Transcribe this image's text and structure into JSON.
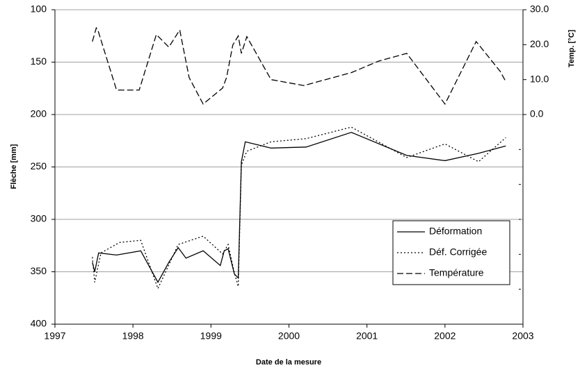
{
  "chart_data": {
    "type": "line",
    "x_label": "Date de la mesure",
    "y_label": "Flèche [mm]",
    "y2_label": "Temp. [°C]",
    "xlim": [
      1997,
      2003
    ],
    "xticks": [
      1997,
      1998,
      1999,
      2000,
      2001,
      2002,
      2003
    ],
    "ylim": [
      100,
      400
    ],
    "y_inverted": true,
    "yticks": [
      100,
      150,
      200,
      250,
      300,
      350,
      400
    ],
    "y2lim": [
      -60,
      30
    ],
    "y2ticks": [
      {
        "value": 30,
        "label": "30.0"
      },
      {
        "value": 20,
        "label": "20.0"
      },
      {
        "value": 10,
        "label": "10.0"
      },
      {
        "value": 0,
        "label": "0.0"
      }
    ],
    "y2minor_ticks": [
      -10,
      -20,
      -30,
      -40,
      -50
    ],
    "grid": true,
    "legend_position": "lower right",
    "series": [
      {
        "name": "Déformation",
        "color": "#000000",
        "dash": "solid",
        "x": [
          1997.48,
          1997.51,
          1997.56,
          1997.79,
          1998.1,
          1998.32,
          1998.46,
          1998.58,
          1998.68,
          1998.9,
          1999.12,
          1999.17,
          1999.22,
          1999.3,
          1999.35,
          1999.39,
          1999.44,
          1999.77,
          2000.22,
          2000.8,
          2001.51,
          2002.0,
          2002.43,
          2002.78
        ],
        "values": [
          341,
          350,
          332,
          334,
          330,
          360,
          341,
          327,
          337,
          330,
          344,
          330,
          328,
          352,
          356,
          245,
          226,
          232,
          231,
          217,
          239,
          244,
          237,
          230
        ]
      },
      {
        "name": "Déf. Corrigée",
        "color": "#000000",
        "dash": "dotted",
        "x": [
          1997.48,
          1997.51,
          1997.59,
          1997.83,
          1998.1,
          1998.32,
          1998.58,
          1998.9,
          1999.15,
          1999.22,
          1999.3,
          1999.35,
          1999.39,
          1999.46,
          1999.77,
          2000.22,
          2000.8,
          2001.51,
          2002.0,
          2002.43,
          2002.78
        ],
        "values": [
          336,
          360,
          332,
          322,
          320,
          366,
          324,
          316,
          333,
          324,
          351,
          364,
          248,
          235,
          226,
          223,
          212,
          241,
          228,
          245,
          222
        ]
      },
      {
        "name": "Température",
        "color": "#000000",
        "dash": "dashed",
        "axis": "y2",
        "x": [
          1997.48,
          1997.53,
          1997.55,
          1997.79,
          1998.08,
          1998.3,
          1998.46,
          1998.6,
          1998.72,
          1998.9,
          1999.15,
          1999.2,
          1999.28,
          1999.35,
          1999.39,
          1999.46,
          1999.77,
          2000.19,
          2000.8,
          2001.15,
          2001.51,
          2002.0,
          2002.4,
          2002.71,
          2002.78
        ],
        "values": [
          20.9,
          24.8,
          24.2,
          7.0,
          7.0,
          22.9,
          19.3,
          24.2,
          10.6,
          3.0,
          7.6,
          10.6,
          19.9,
          22.5,
          17.5,
          22.3,
          10.0,
          8.3,
          12.0,
          15.3,
          17.5,
          3.0,
          20.9,
          12.3,
          9.4
        ]
      }
    ]
  }
}
